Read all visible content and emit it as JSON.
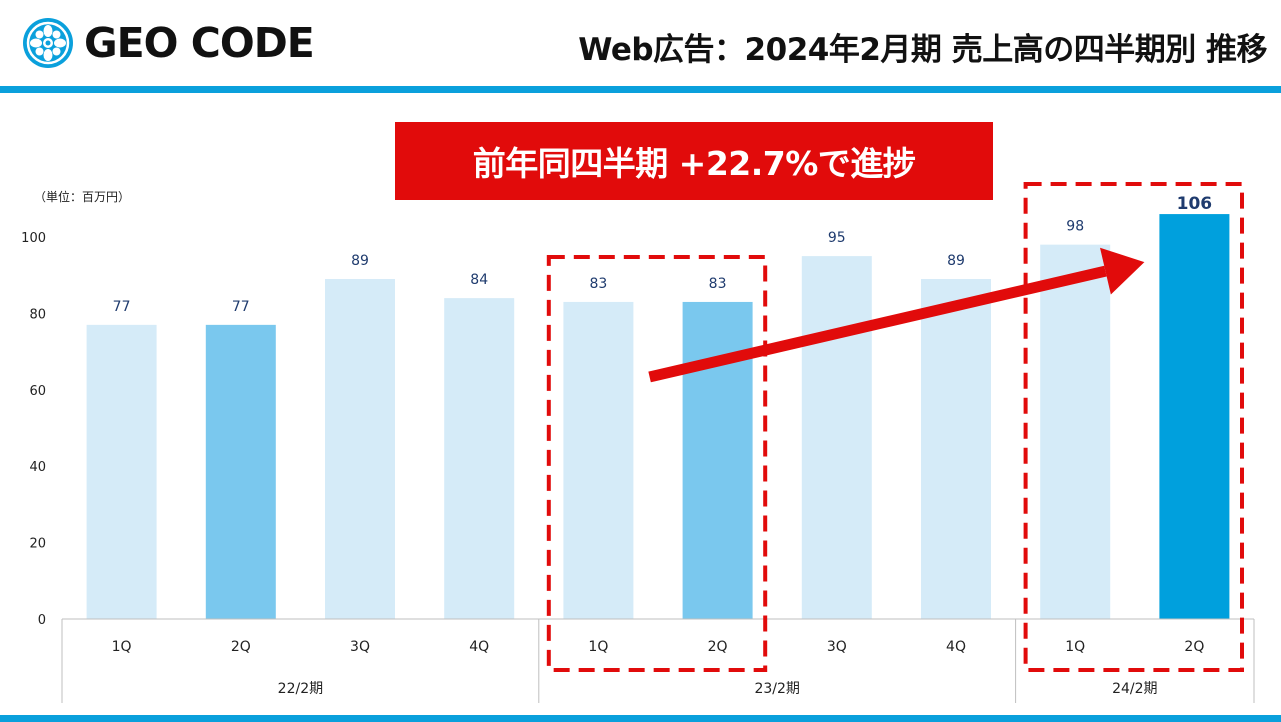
{
  "header": {
    "logo_text": "GEO CODE",
    "title": "Web広告：2024年2月期 売上高の四半期別 推移"
  },
  "callout": {
    "text": "前年同四半期 +22.7%で進捗"
  },
  "colors": {
    "accent_blue": "#0aa0dc",
    "bar_light": "#d5ebf8",
    "bar_mid": "#7ac8ee",
    "bar_current": "#00a0dd",
    "highlight_red": "#e10b0b",
    "value_label": "#1f3b6e"
  },
  "chart_data": {
    "type": "bar",
    "unit_label": "（単位：百万円）",
    "ylim": [
      0,
      100
    ],
    "yticks": [
      0,
      20,
      40,
      60,
      80,
      100
    ],
    "categories": [
      "1Q",
      "2Q",
      "3Q",
      "4Q",
      "1Q",
      "2Q",
      "3Q",
      "4Q",
      "1Q",
      "2Q"
    ],
    "values": [
      77,
      77,
      89,
      84,
      83,
      83,
      95,
      89,
      98,
      106
    ],
    "bar_styles": [
      "light",
      "mid",
      "light",
      "light",
      "light",
      "mid",
      "light",
      "light",
      "light",
      "current"
    ],
    "groups": [
      {
        "label": "22/2期",
        "count": 4
      },
      {
        "label": "23/2期",
        "count": 4
      },
      {
        "label": "24/2期",
        "count": 2
      }
    ],
    "grid": false,
    "annotations": [
      {
        "type": "dashed-box",
        "covers": [
          4,
          5
        ]
      },
      {
        "type": "dashed-box",
        "covers": [
          8,
          9
        ]
      },
      {
        "type": "arrow",
        "from_bar": 5,
        "to_bar": 9
      }
    ]
  }
}
